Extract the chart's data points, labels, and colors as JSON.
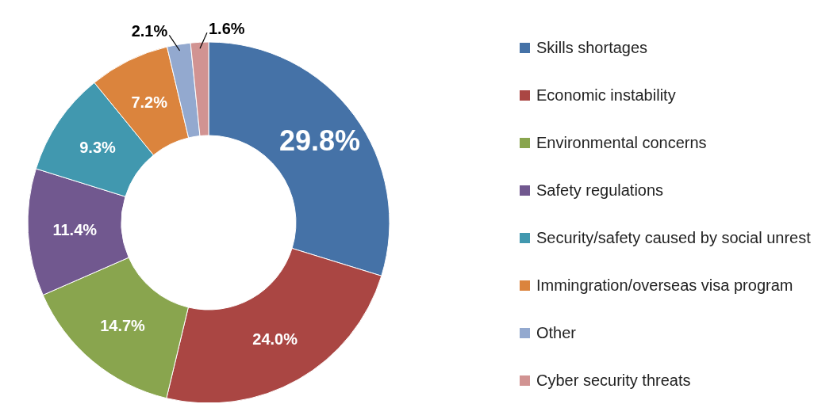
{
  "chart_data": {
    "type": "donut",
    "categories": [
      "Skills shortages",
      "Economic instability",
      "Environmental concerns",
      "Safety regulations",
      "Security/safety caused by social unrest",
      "Immingration/overseas visa program",
      "Other",
      "Cyber security threats"
    ],
    "values": [
      29.8,
      24.0,
      14.7,
      11.4,
      9.3,
      7.2,
      2.1,
      1.6
    ],
    "colors": [
      "#4572a7",
      "#aa4643",
      "#89a54e",
      "#71588f",
      "#4198af",
      "#db843d",
      "#93a9cf",
      "#d19392"
    ],
    "value_labels": [
      "29.8%",
      "24.0%",
      "14.7%",
      "11.4%",
      "9.3%",
      "7.2%",
      "2.1%",
      "1.6%"
    ],
    "legend": "right"
  }
}
